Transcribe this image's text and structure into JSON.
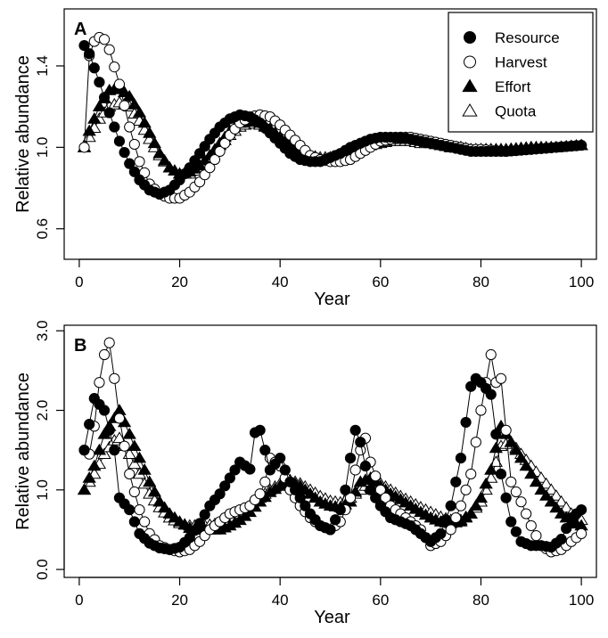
{
  "chart_data": [
    {
      "type": "line",
      "panel_label": "A",
      "xlabel": "Year",
      "ylabel": "Relative abundance",
      "xlim": [
        -3,
        103
      ],
      "ylim": [
        0.45,
        1.68
      ],
      "xticks": [
        0,
        20,
        40,
        60,
        80,
        100
      ],
      "yticks": [
        0.6,
        1.0,
        1.4
      ],
      "ytick_labels": [
        "0.6",
        "1.0",
        "1.4"
      ],
      "legend_position": "top-right",
      "grid": false,
      "series_keypoints": [
        {
          "name": "Resource",
          "marker": "filled-circle",
          "x": [
            1,
            2,
            4,
            6,
            8,
            10,
            12,
            14,
            16,
            18,
            20,
            22,
            24,
            26,
            28,
            30,
            32,
            34,
            36,
            38,
            40,
            42,
            44,
            46,
            48,
            50,
            52,
            54,
            56,
            58,
            60,
            62,
            64,
            66,
            68,
            70,
            72,
            74,
            76,
            78,
            80,
            85,
            90,
            95,
            100
          ],
          "y": [
            1.5,
            1.46,
            1.32,
            1.17,
            1.03,
            0.92,
            0.84,
            0.79,
            0.77,
            0.79,
            0.84,
            0.9,
            0.97,
            1.04,
            1.1,
            1.14,
            1.16,
            1.15,
            1.12,
            1.07,
            1.02,
            0.97,
            0.94,
            0.93,
            0.93,
            0.95,
            0.97,
            1.0,
            1.02,
            1.04,
            1.05,
            1.05,
            1.05,
            1.04,
            1.03,
            1.02,
            1.01,
            1.0,
            0.99,
            0.98,
            0.98,
            0.98,
            0.99,
            1.0,
            1.01
          ]
        },
        {
          "name": "Harvest",
          "marker": "open-circle",
          "x": [
            1,
            2,
            3,
            4,
            5,
            6,
            8,
            10,
            12,
            14,
            16,
            18,
            20,
            22,
            24,
            26,
            28,
            30,
            32,
            34,
            36,
            38,
            40,
            42,
            44,
            46,
            48,
            50,
            52,
            54,
            56,
            58,
            60,
            62,
            64,
            66,
            68,
            70,
            72,
            74,
            76,
            78,
            80,
            85,
            90,
            95,
            100
          ],
          "y": [
            1.0,
            1.45,
            1.52,
            1.54,
            1.53,
            1.48,
            1.31,
            1.1,
            0.93,
            0.82,
            0.77,
            0.75,
            0.75,
            0.78,
            0.83,
            0.9,
            0.98,
            1.06,
            1.12,
            1.15,
            1.16,
            1.15,
            1.11,
            1.06,
            1.01,
            0.96,
            0.94,
            0.93,
            0.93,
            0.94,
            0.97,
            1.0,
            1.03,
            1.04,
            1.05,
            1.05,
            1.04,
            1.03,
            1.02,
            1.01,
            1.0,
            0.99,
            0.99,
            0.98,
            0.99,
            1.0,
            1.01
          ]
        },
        {
          "name": "Effort",
          "marker": "filled-triangle",
          "x": [
            1,
            2,
            4,
            6,
            8,
            10,
            12,
            14,
            16,
            18,
            20,
            22,
            24,
            26,
            28,
            30,
            32,
            34,
            36,
            38,
            40,
            42,
            44,
            46,
            48,
            50,
            52,
            54,
            56,
            58,
            60,
            62,
            64,
            66,
            68,
            70,
            72,
            74,
            76,
            78,
            80,
            85,
            90,
            95,
            100
          ],
          "y": [
            1.0,
            1.08,
            1.2,
            1.28,
            1.29,
            1.25,
            1.17,
            1.07,
            0.97,
            0.9,
            0.87,
            0.88,
            0.91,
            0.96,
            1.02,
            1.08,
            1.12,
            1.13,
            1.12,
            1.09,
            1.05,
            1.01,
            0.98,
            0.95,
            0.94,
            0.94,
            0.95,
            0.97,
            0.99,
            1.01,
            1.03,
            1.04,
            1.04,
            1.04,
            1.03,
            1.02,
            1.01,
            1.0,
            1.0,
            0.99,
            0.99,
            0.99,
            1.0,
            1.0,
            1.01
          ]
        },
        {
          "name": "Quota",
          "marker": "open-triangle",
          "x": [
            1,
            2,
            4,
            6,
            8,
            10,
            12,
            14,
            16,
            18,
            20,
            22,
            24,
            26,
            28,
            30,
            32,
            34,
            36,
            38,
            40,
            42,
            44,
            46,
            48,
            50,
            52,
            54,
            56,
            58,
            60,
            62,
            64,
            66,
            68,
            70,
            72,
            74,
            76,
            78,
            80,
            85,
            90,
            95,
            100
          ],
          "y": [
            1.0,
            1.05,
            1.14,
            1.2,
            1.22,
            1.2,
            1.13,
            1.04,
            0.96,
            0.9,
            0.87,
            0.87,
            0.9,
            0.95,
            1.01,
            1.06,
            1.1,
            1.12,
            1.11,
            1.09,
            1.05,
            1.01,
            0.98,
            0.96,
            0.95,
            0.95,
            0.96,
            0.97,
            0.99,
            1.01,
            1.02,
            1.03,
            1.03,
            1.03,
            1.02,
            1.02,
            1.01,
            1.0,
            1.0,
            0.99,
            0.99,
            0.99,
            1.0,
            1.0,
            1.01
          ]
        }
      ]
    },
    {
      "type": "line",
      "panel_label": "B",
      "xlabel": "Year",
      "ylabel": "Relative abundance",
      "xlim": [
        -3,
        103
      ],
      "ylim": [
        -0.1,
        3.07
      ],
      "xticks": [
        0,
        20,
        40,
        60,
        80,
        100
      ],
      "yticks": [
        0,
        1,
        2,
        3
      ],
      "ytick_labels": [
        "0.0",
        "1.0",
        "2.0",
        "3.0"
      ],
      "grid": false,
      "series_keypoints": [
        {
          "name": "Resource",
          "marker": "filled-circle",
          "x": [
            1,
            3,
            5,
            7,
            8,
            10,
            12,
            14,
            16,
            18,
            20,
            22,
            24,
            26,
            28,
            30,
            32,
            34,
            35,
            36,
            38,
            40,
            42,
            44,
            46,
            48,
            50,
            52,
            53,
            54,
            55,
            56,
            58,
            60,
            62,
            64,
            66,
            68,
            70,
            72,
            74,
            76,
            78,
            79,
            80,
            82,
            84,
            86,
            88,
            90,
            92,
            94,
            96,
            98,
            100
          ],
          "y": [
            1.5,
            2.15,
            2.0,
            1.5,
            0.9,
            0.75,
            0.45,
            0.33,
            0.27,
            0.25,
            0.28,
            0.4,
            0.58,
            0.8,
            0.95,
            1.15,
            1.35,
            1.26,
            1.72,
            1.75,
            1.25,
            1.4,
            1.1,
            0.9,
            0.7,
            0.55,
            0.5,
            0.75,
            1.0,
            1.4,
            1.75,
            1.6,
            1.0,
            0.8,
            0.65,
            0.6,
            0.55,
            0.45,
            0.35,
            0.45,
            0.8,
            1.4,
            2.3,
            2.4,
            2.35,
            2.2,
            1.2,
            0.6,
            0.35,
            0.3,
            0.3,
            0.28,
            0.38,
            0.65,
            0.75
          ]
        },
        {
          "name": "Harvest",
          "marker": "open-circle",
          "x": [
            1,
            2,
            3,
            4,
            5,
            6,
            7,
            8,
            10,
            12,
            14,
            16,
            18,
            20,
            22,
            24,
            26,
            28,
            30,
            32,
            34,
            36,
            37,
            38,
            40,
            42,
            44,
            46,
            48,
            50,
            52,
            54,
            55,
            56,
            57,
            58,
            60,
            62,
            64,
            66,
            68,
            70,
            72,
            74,
            76,
            78,
            80,
            81,
            82,
            83,
            84,
            86,
            88,
            90,
            92,
            94,
            96,
            98,
            100
          ],
          "y": [
            1.5,
            1.45,
            1.8,
            2.35,
            2.7,
            2.85,
            2.4,
            1.9,
            1.2,
            0.75,
            0.45,
            0.3,
            0.25,
            0.22,
            0.25,
            0.35,
            0.5,
            0.6,
            0.7,
            0.75,
            0.8,
            0.95,
            1.1,
            1.4,
            1.3,
            1.0,
            0.8,
            0.65,
            0.55,
            0.5,
            0.6,
            0.9,
            1.25,
            1.5,
            1.65,
            1.35,
            1.0,
            0.8,
            0.7,
            0.6,
            0.5,
            0.3,
            0.35,
            0.5,
            0.8,
            1.2,
            2.0,
            2.35,
            2.7,
            2.35,
            2.4,
            1.1,
            0.85,
            0.55,
            0.3,
            0.22,
            0.25,
            0.35,
            0.45
          ]
        },
        {
          "name": "Effort",
          "marker": "filled-triangle",
          "x": [
            1,
            3,
            5,
            7,
            8,
            10,
            12,
            14,
            16,
            18,
            20,
            22,
            24,
            26,
            28,
            30,
            32,
            34,
            36,
            38,
            40,
            42,
            44,
            46,
            48,
            50,
            52,
            54,
            56,
            58,
            60,
            62,
            64,
            66,
            68,
            70,
            72,
            74,
            76,
            78,
            80,
            82,
            84,
            86,
            88,
            90,
            92,
            94,
            96,
            98,
            100
          ],
          "y": [
            1.0,
            1.3,
            1.7,
            1.9,
            2.0,
            1.7,
            1.4,
            1.1,
            0.85,
            0.7,
            0.6,
            0.52,
            0.5,
            0.5,
            0.5,
            0.55,
            0.62,
            0.72,
            0.85,
            0.97,
            1.05,
            1.1,
            1.05,
            0.95,
            0.85,
            0.8,
            0.78,
            0.85,
            1.1,
            1.15,
            1.05,
            0.95,
            0.88,
            0.8,
            0.72,
            0.65,
            0.6,
            0.58,
            0.6,
            0.7,
            0.9,
            1.25,
            1.8,
            1.6,
            1.4,
            1.2,
            1.0,
            0.85,
            0.7,
            0.6,
            0.55
          ]
        },
        {
          "name": "Quota",
          "marker": "open-triangle",
          "x": [
            1,
            3,
            5,
            7,
            8,
            10,
            12,
            14,
            16,
            18,
            20,
            22,
            24,
            26,
            28,
            30,
            32,
            34,
            36,
            38,
            40,
            42,
            44,
            46,
            48,
            50,
            52,
            54,
            56,
            58,
            60,
            62,
            64,
            66,
            68,
            70,
            72,
            74,
            76,
            78,
            80,
            82,
            84,
            86,
            88,
            90,
            92,
            94,
            96,
            98,
            100
          ],
          "y": [
            1.0,
            1.2,
            1.45,
            1.62,
            1.65,
            1.45,
            1.2,
            0.95,
            0.78,
            0.65,
            0.58,
            0.55,
            0.55,
            0.56,
            0.58,
            0.62,
            0.7,
            0.8,
            0.9,
            1.0,
            1.08,
            1.12,
            1.08,
            1.0,
            0.92,
            0.86,
            0.84,
            0.9,
            1.0,
            1.1,
            1.08,
            1.0,
            0.92,
            0.85,
            0.78,
            0.72,
            0.66,
            0.62,
            0.62,
            0.7,
            0.85,
            1.15,
            1.55,
            1.6,
            1.45,
            1.3,
            1.15,
            1.0,
            0.85,
            0.7,
            0.62
          ]
        }
      ]
    }
  ]
}
